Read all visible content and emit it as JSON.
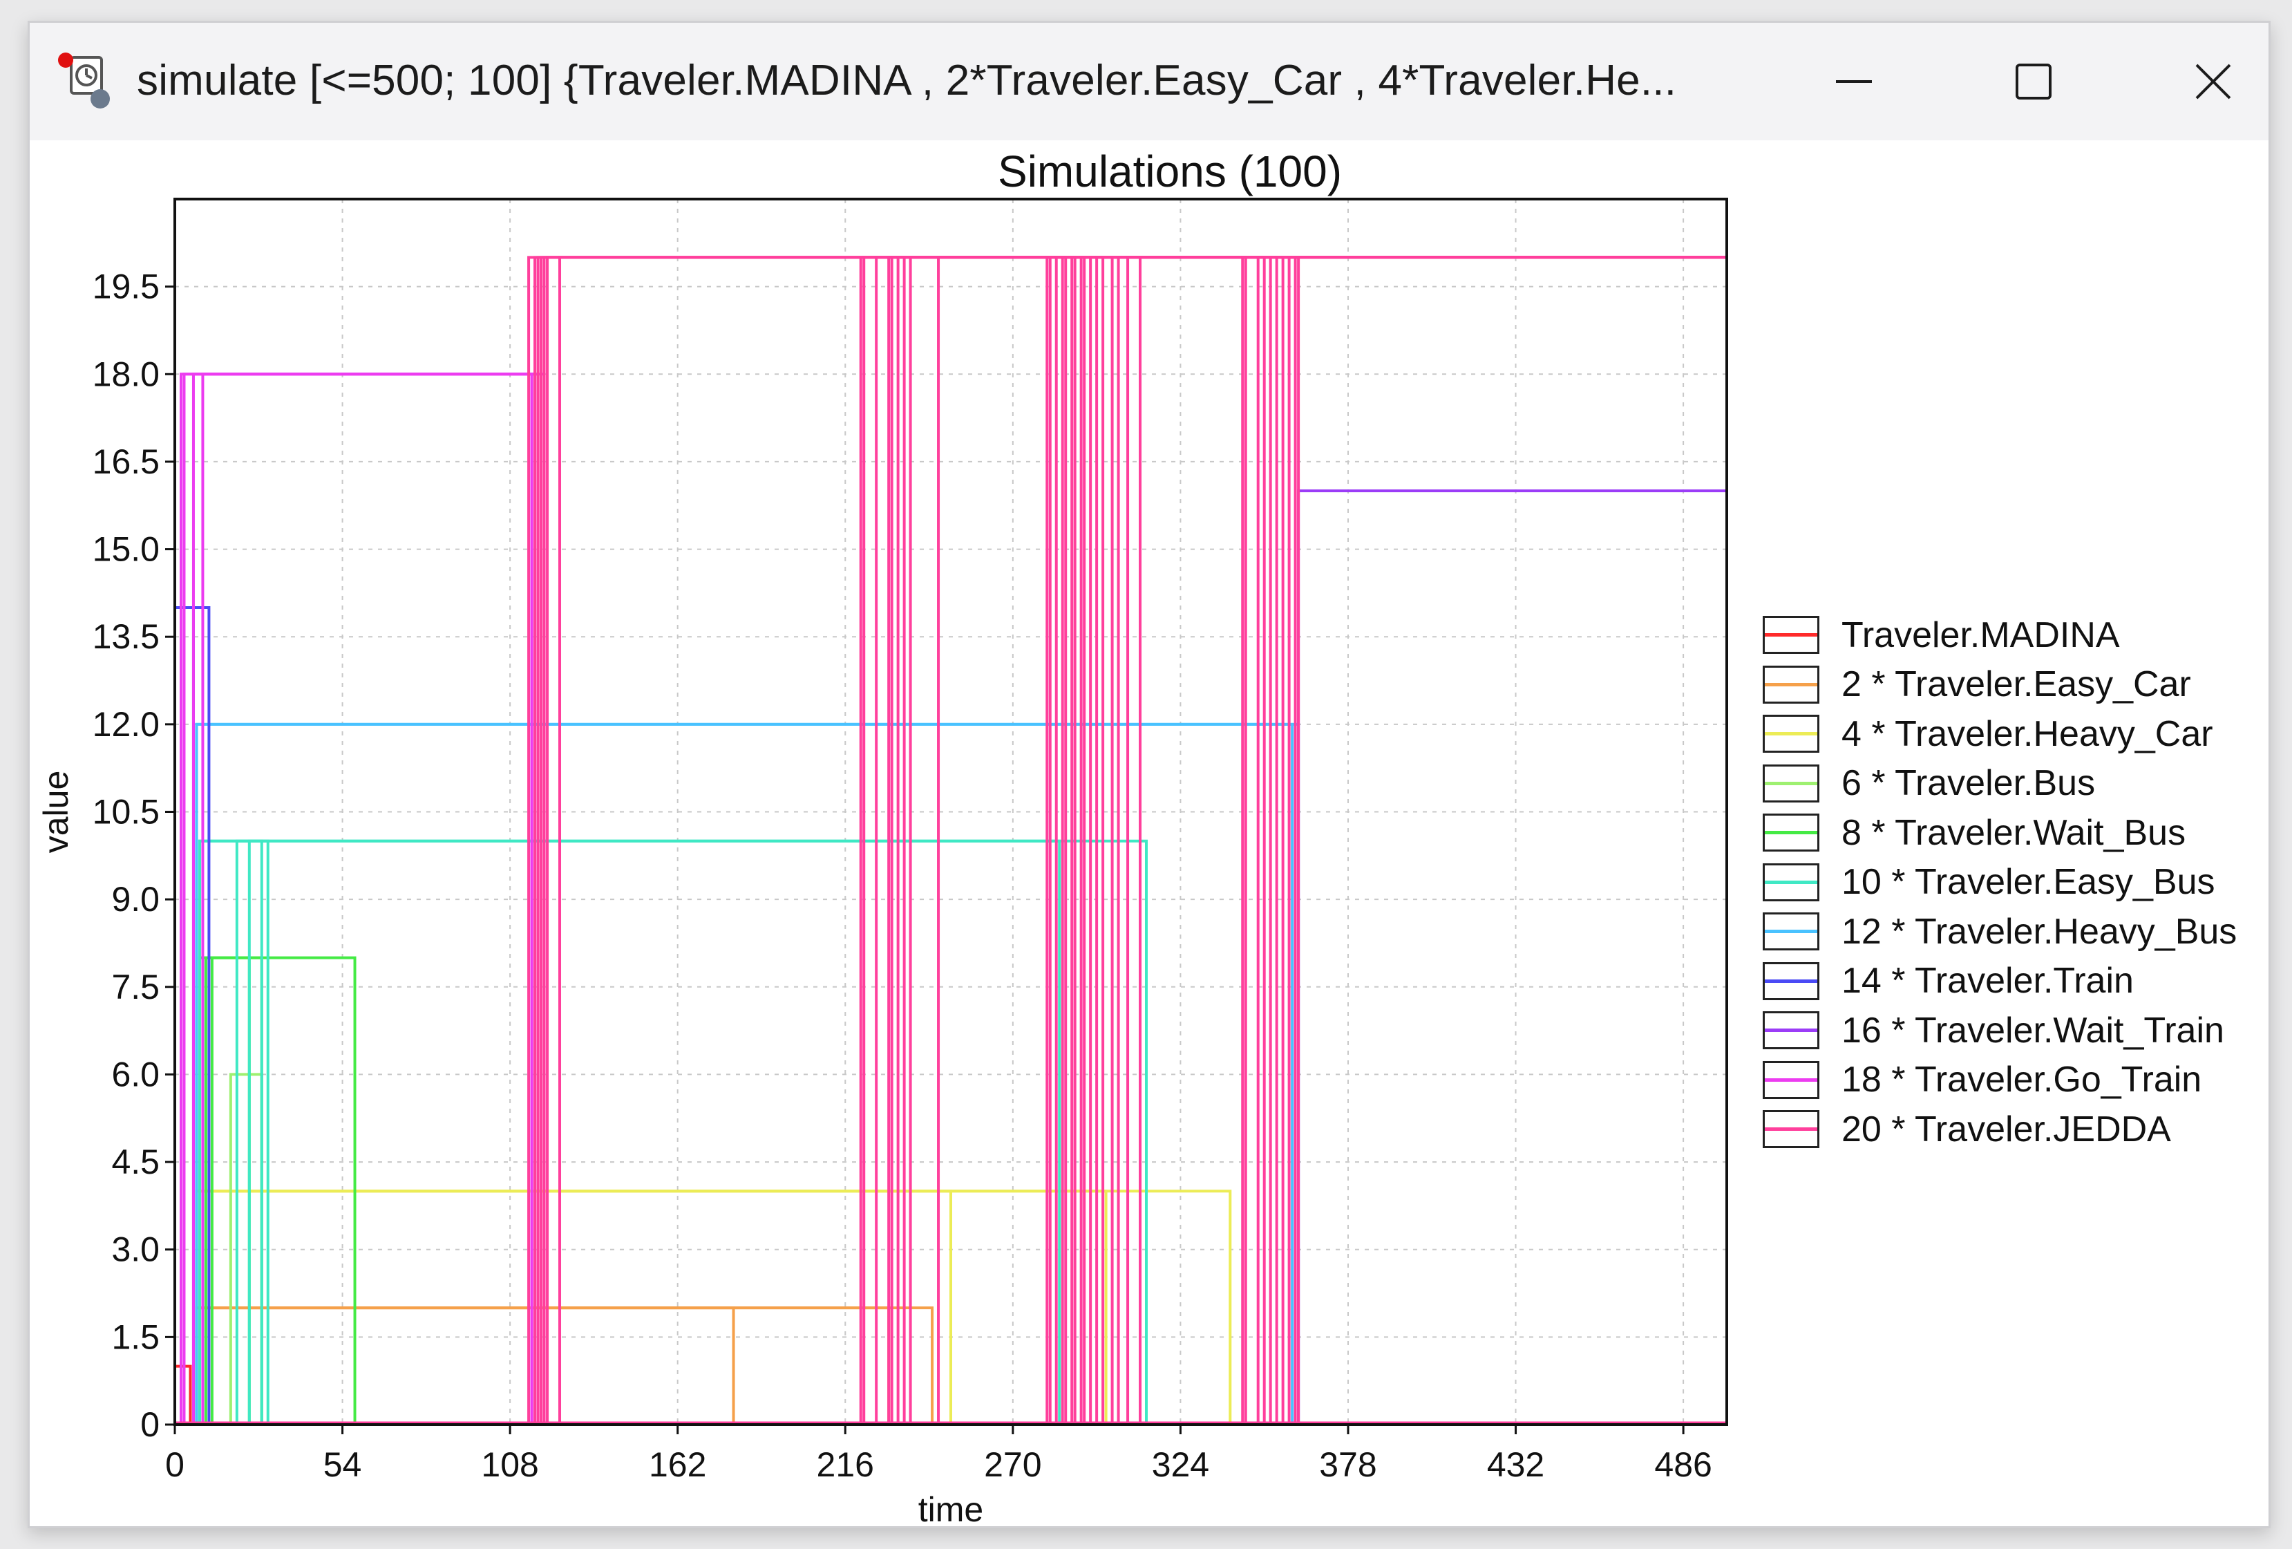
{
  "window": {
    "title": "simulate [<=500; 100] {Traveler.MADINA , 2*Traveler.Easy_Car ,  4*Traveler.He...",
    "buttons": {
      "minimize": "minimize-icon",
      "maximize": "maximize-icon",
      "close": "close-icon"
    }
  },
  "chart_data": {
    "type": "line",
    "title": "Simulations (100)",
    "xlabel": "time",
    "ylabel": "value",
    "xlim": [
      0,
      500
    ],
    "ylim": [
      0,
      21
    ],
    "x_ticks": [
      "0",
      "54",
      "108",
      "162",
      "216",
      "270",
      "324",
      "378",
      "432",
      "486"
    ],
    "y_ticks": [
      "0",
      "1.5",
      "3.0",
      "4.5",
      "6.0",
      "7.5",
      "9.0",
      "10.5",
      "12.0",
      "13.5",
      "15.0",
      "16.5",
      "18.0",
      "19.5"
    ],
    "grid": true,
    "legend_position": "right",
    "series": [
      {
        "name": "Traveler.MADINA",
        "color": "#ff2a2a",
        "level": 1,
        "segments": [
          [
            0,
            5
          ]
        ]
      },
      {
        "name": "2 * Traveler.Easy_Car",
        "color": "#f5a04a",
        "level": 2,
        "segments": [
          [
            7,
            230
          ],
          [
            7,
            244
          ],
          [
            8,
            180
          ]
        ]
      },
      {
        "name": "4 * Traveler.Heavy_Car",
        "color": "#ecec56",
        "level": 4,
        "segments": [
          [
            7,
            300
          ],
          [
            7,
            340
          ],
          [
            8,
            250
          ]
        ]
      },
      {
        "name": "6 * Traveler.Bus",
        "color": "#9ef070",
        "level": 6,
        "segments": [
          [
            18,
            28
          ]
        ]
      },
      {
        "name": "8 * Traveler.Wait_Bus",
        "color": "#44ea44",
        "level": 8,
        "segments": [
          [
            8,
            58
          ],
          [
            10,
            24
          ],
          [
            12,
            28
          ]
        ]
      },
      {
        "name": "10 * Traveler.Easy_Bus",
        "color": "#3fe8c4",
        "level": 10,
        "segments": [
          [
            8,
            285
          ],
          [
            8,
            313
          ],
          [
            20,
            28
          ],
          [
            24,
            30
          ]
        ]
      },
      {
        "name": "12 * Traveler.Heavy_Bus",
        "color": "#49c2ff",
        "level": 12,
        "segments": [
          [
            7,
            360
          ],
          [
            7,
            362
          ]
        ]
      },
      {
        "name": "14 * Traveler.Train",
        "color": "#4a4af5",
        "level": 14,
        "segments": [
          [
            0,
            6
          ],
          [
            0,
            11
          ]
        ]
      },
      {
        "name": "16 * Traveler.Wait_Train",
        "color": "#9b3cf7",
        "level": 16,
        "segments": [
          [
            362,
            500
          ]
        ]
      },
      {
        "name": "18 * Traveler.Go_Train",
        "color": "#ec3cf0",
        "level": 18,
        "segments": [
          [
            2,
            115
          ],
          [
            3,
            117
          ],
          [
            6,
            116
          ],
          [
            9,
            119
          ]
        ]
      },
      {
        "name": "20 * Traveler.JEDDA",
        "color": "#ff3f9c",
        "level": 20,
        "segments": [
          [
            114,
            500
          ],
          [
            116,
            500
          ],
          [
            117,
            500
          ],
          [
            118,
            500
          ],
          [
            119,
            500
          ],
          [
            120,
            500
          ],
          [
            124,
            500
          ],
          [
            221,
            500
          ],
          [
            222,
            500
          ],
          [
            226,
            500
          ],
          [
            230,
            500
          ],
          [
            231,
            500
          ],
          [
            233,
            500
          ],
          [
            235,
            500
          ],
          [
            237,
            500
          ],
          [
            246,
            500
          ],
          [
            281,
            500
          ],
          [
            282,
            500
          ],
          [
            284,
            500
          ],
          [
            286,
            500
          ],
          [
            287,
            500
          ],
          [
            289,
            500
          ],
          [
            290,
            500
          ],
          [
            292,
            500
          ],
          [
            293,
            500
          ],
          [
            295,
            500
          ],
          [
            297,
            500
          ],
          [
            299,
            500
          ],
          [
            302,
            500
          ],
          [
            304,
            500
          ],
          [
            307,
            500
          ],
          [
            311,
            500
          ],
          [
            344,
            500
          ],
          [
            345,
            500
          ],
          [
            349,
            500
          ],
          [
            351,
            500
          ],
          [
            353,
            500
          ],
          [
            355,
            500
          ],
          [
            357,
            500
          ],
          [
            359,
            500
          ],
          [
            361,
            500
          ],
          [
            362,
            500
          ]
        ]
      }
    ]
  }
}
